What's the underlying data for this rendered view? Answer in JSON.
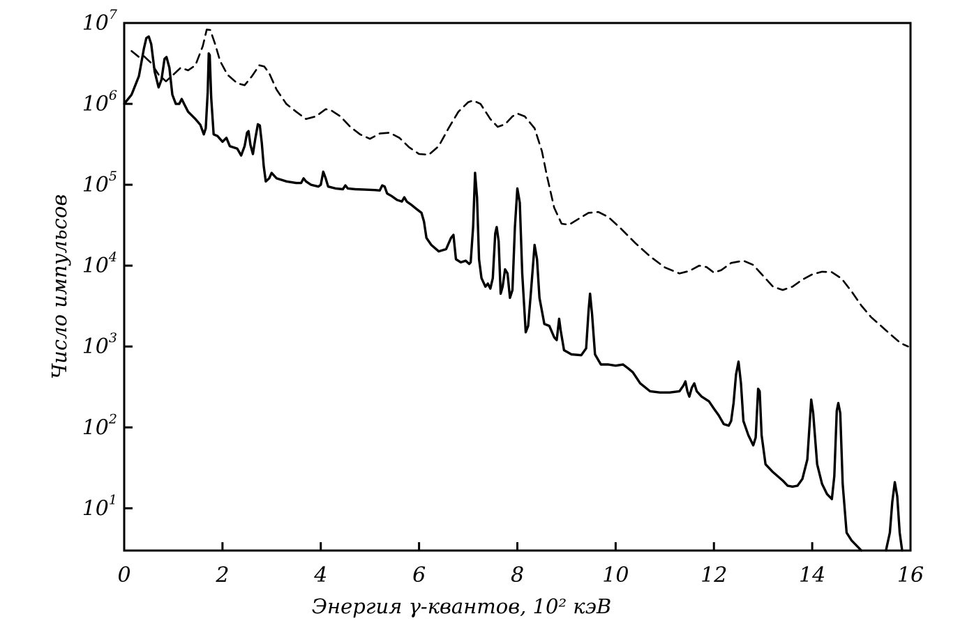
{
  "chart_data": {
    "type": "line",
    "xlabel": "Энергия γ-квантов, 10² кэВ",
    "ylabel": "Число импульсов",
    "xlim": [
      0,
      16
    ],
    "ylim": [
      3,
      10000000
    ],
    "yscale": "log",
    "grid": false,
    "x_ticks": [
      {
        "value": 0,
        "label": "0"
      },
      {
        "value": 2,
        "label": "2"
      },
      {
        "value": 4,
        "label": "4"
      },
      {
        "value": 6,
        "label": "6"
      },
      {
        "value": 8,
        "label": "8"
      },
      {
        "value": 10,
        "label": "10"
      },
      {
        "value": 12,
        "label": "12"
      },
      {
        "value": 14,
        "label": "14"
      },
      {
        "value": 16,
        "label": "16"
      }
    ],
    "y_ticks": [
      {
        "value": 10,
        "base": "10",
        "exp": "1"
      },
      {
        "value": 100,
        "base": "10",
        "exp": "2"
      },
      {
        "value": 1000,
        "base": "10",
        "exp": "3"
      },
      {
        "value": 10000,
        "base": "10",
        "exp": "4"
      },
      {
        "value": 100000,
        "base": "10",
        "exp": "5"
      },
      {
        "value": 1000000,
        "base": "10",
        "exp": "6"
      },
      {
        "value": 10000000,
        "base": "10",
        "exp": "7"
      }
    ],
    "series": [
      {
        "style": "dashed",
        "color": "#000000",
        "points": [
          [
            0.15,
            4500000
          ],
          [
            0.3,
            3800000
          ],
          [
            0.4,
            3900000
          ],
          [
            0.55,
            3200000
          ],
          [
            0.7,
            2300000
          ],
          [
            0.85,
            1900000
          ],
          [
            1.0,
            2300000
          ],
          [
            1.15,
            2800000
          ],
          [
            1.3,
            2600000
          ],
          [
            1.45,
            3000000
          ],
          [
            1.6,
            5200000
          ],
          [
            1.68,
            8300000
          ],
          [
            1.75,
            8200000
          ],
          [
            1.85,
            5500000
          ],
          [
            1.95,
            3400000
          ],
          [
            2.1,
            2300000
          ],
          [
            2.3,
            1800000
          ],
          [
            2.45,
            1700000
          ],
          [
            2.6,
            2200000
          ],
          [
            2.75,
            3000000
          ],
          [
            2.85,
            2900000
          ],
          [
            2.95,
            2400000
          ],
          [
            3.1,
            1500000
          ],
          [
            3.3,
            1000000
          ],
          [
            3.5,
            800000
          ],
          [
            3.7,
            650000
          ],
          [
            3.9,
            700000
          ],
          [
            4.1,
            860000
          ],
          [
            4.2,
            840000
          ],
          [
            4.4,
            700000
          ],
          [
            4.6,
            520000
          ],
          [
            4.8,
            420000
          ],
          [
            5.0,
            370000
          ],
          [
            5.2,
            430000
          ],
          [
            5.4,
            440000
          ],
          [
            5.6,
            380000
          ],
          [
            5.8,
            290000
          ],
          [
            6.0,
            240000
          ],
          [
            6.2,
            235000
          ],
          [
            6.4,
            300000
          ],
          [
            6.6,
            500000
          ],
          [
            6.8,
            800000
          ],
          [
            7.0,
            1050000
          ],
          [
            7.1,
            1100000
          ],
          [
            7.25,
            1000000
          ],
          [
            7.45,
            650000
          ],
          [
            7.6,
            520000
          ],
          [
            7.75,
            560000
          ],
          [
            7.9,
            700000
          ],
          [
            8.0,
            760000
          ],
          [
            8.15,
            700000
          ],
          [
            8.35,
            500000
          ],
          [
            8.5,
            260000
          ],
          [
            8.6,
            130000
          ],
          [
            8.75,
            52000
          ],
          [
            8.9,
            33000
          ],
          [
            9.05,
            32000
          ],
          [
            9.25,
            38000
          ],
          [
            9.45,
            45000
          ],
          [
            9.65,
            46000
          ],
          [
            9.85,
            40000
          ],
          [
            10.1,
            29000
          ],
          [
            10.4,
            19000
          ],
          [
            10.7,
            13000
          ],
          [
            11.0,
            9500
          ],
          [
            11.3,
            8000
          ],
          [
            11.5,
            8600
          ],
          [
            11.7,
            10000
          ],
          [
            11.85,
            9600
          ],
          [
            12.0,
            8200
          ],
          [
            12.15,
            8800
          ],
          [
            12.35,
            10800
          ],
          [
            12.6,
            11500
          ],
          [
            12.8,
            10200
          ],
          [
            13.0,
            7500
          ],
          [
            13.2,
            5500
          ],
          [
            13.4,
            5000
          ],
          [
            13.6,
            5500
          ],
          [
            13.8,
            6700
          ],
          [
            14.0,
            7800
          ],
          [
            14.2,
            8400
          ],
          [
            14.4,
            8300
          ],
          [
            14.6,
            6900
          ],
          [
            14.8,
            4800
          ],
          [
            15.0,
            3200
          ],
          [
            15.2,
            2300
          ],
          [
            15.4,
            1800
          ],
          [
            15.6,
            1400
          ],
          [
            15.8,
            1100
          ],
          [
            15.95,
            1000
          ]
        ]
      },
      {
        "style": "solid",
        "color": "#000000",
        "points": [
          [
            0.0,
            1000000
          ],
          [
            0.15,
            1300000
          ],
          [
            0.3,
            2200000
          ],
          [
            0.4,
            4800000
          ],
          [
            0.45,
            6500000
          ],
          [
            0.5,
            6800000
          ],
          [
            0.55,
            5500000
          ],
          [
            0.62,
            2500000
          ],
          [
            0.7,
            1600000
          ],
          [
            0.76,
            2000000
          ],
          [
            0.82,
            3600000
          ],
          [
            0.86,
            3800000
          ],
          [
            0.92,
            2800000
          ],
          [
            0.98,
            1300000
          ],
          [
            1.05,
            1000000
          ],
          [
            1.12,
            1000000
          ],
          [
            1.17,
            1150000
          ],
          [
            1.22,
            1000000
          ],
          [
            1.3,
            800000
          ],
          [
            1.45,
            650000
          ],
          [
            1.55,
            550000
          ],
          [
            1.62,
            420000
          ],
          [
            1.66,
            500000
          ],
          [
            1.7,
            1400000
          ],
          [
            1.72,
            4200000
          ],
          [
            1.74,
            4000000
          ],
          [
            1.77,
            1200000
          ],
          [
            1.82,
            420000
          ],
          [
            1.9,
            400000
          ],
          [
            2.0,
            340000
          ],
          [
            2.08,
            380000
          ],
          [
            2.15,
            300000
          ],
          [
            2.3,
            280000
          ],
          [
            2.38,
            230000
          ],
          [
            2.45,
            300000
          ],
          [
            2.5,
            440000
          ],
          [
            2.53,
            460000
          ],
          [
            2.57,
            310000
          ],
          [
            2.62,
            240000
          ],
          [
            2.67,
            380000
          ],
          [
            2.72,
            560000
          ],
          [
            2.76,
            540000
          ],
          [
            2.8,
            330000
          ],
          [
            2.84,
            170000
          ],
          [
            2.88,
            110000
          ],
          [
            2.95,
            120000
          ],
          [
            3.0,
            140000
          ],
          [
            3.1,
            120000
          ],
          [
            3.3,
            110000
          ],
          [
            3.5,
            105000
          ],
          [
            3.6,
            105000
          ],
          [
            3.65,
            120000
          ],
          [
            3.7,
            110000
          ],
          [
            3.8,
            100000
          ],
          [
            3.95,
            95000
          ],
          [
            4.0,
            100000
          ],
          [
            4.05,
            145000
          ],
          [
            4.1,
            120000
          ],
          [
            4.15,
            95000
          ],
          [
            4.3,
            90000
          ],
          [
            4.45,
            88000
          ],
          [
            4.5,
            98000
          ],
          [
            4.55,
            90000
          ],
          [
            4.7,
            88000
          ],
          [
            4.9,
            87000
          ],
          [
            5.1,
            86000
          ],
          [
            5.2,
            85000
          ],
          [
            5.25,
            98000
          ],
          [
            5.3,
            95000
          ],
          [
            5.35,
            78000
          ],
          [
            5.45,
            72000
          ],
          [
            5.55,
            65000
          ],
          [
            5.65,
            62000
          ],
          [
            5.7,
            70000
          ],
          [
            5.75,
            62000
          ],
          [
            5.85,
            56000
          ],
          [
            5.95,
            50000
          ],
          [
            6.05,
            45000
          ],
          [
            6.1,
            35000
          ],
          [
            6.15,
            22000
          ],
          [
            6.25,
            18000
          ],
          [
            6.4,
            15000
          ],
          [
            6.55,
            16000
          ],
          [
            6.65,
            22000
          ],
          [
            6.7,
            24000
          ],
          [
            6.75,
            12000
          ],
          [
            6.85,
            11000
          ],
          [
            6.95,
            11500
          ],
          [
            7.02,
            10500
          ],
          [
            7.05,
            11000
          ],
          [
            7.1,
            30000
          ],
          [
            7.14,
            140000
          ],
          [
            7.18,
            70000
          ],
          [
            7.22,
            12000
          ],
          [
            7.27,
            7000
          ],
          [
            7.35,
            5500
          ],
          [
            7.4,
            6000
          ],
          [
            7.45,
            5200
          ],
          [
            7.5,
            7000
          ],
          [
            7.55,
            25000
          ],
          [
            7.58,
            30000
          ],
          [
            7.62,
            20000
          ],
          [
            7.66,
            4500
          ],
          [
            7.7,
            5500
          ],
          [
            7.75,
            9000
          ],
          [
            7.8,
            8000
          ],
          [
            7.85,
            4000
          ],
          [
            7.9,
            5000
          ],
          [
            7.95,
            30000
          ],
          [
            8.0,
            90000
          ],
          [
            8.05,
            60000
          ],
          [
            8.1,
            8000
          ],
          [
            8.17,
            1500
          ],
          [
            8.22,
            1800
          ],
          [
            8.28,
            5000
          ],
          [
            8.35,
            18000
          ],
          [
            8.4,
            12000
          ],
          [
            8.45,
            4000
          ],
          [
            8.55,
            1900
          ],
          [
            8.65,
            1800
          ],
          [
            8.75,
            1300
          ],
          [
            8.8,
            1200
          ],
          [
            8.85,
            2200
          ],
          [
            8.88,
            1600
          ],
          [
            8.95,
            900
          ],
          [
            9.1,
            800
          ],
          [
            9.3,
            780
          ],
          [
            9.4,
            950
          ],
          [
            9.45,
            2800
          ],
          [
            9.48,
            4500
          ],
          [
            9.52,
            2500
          ],
          [
            9.58,
            800
          ],
          [
            9.7,
            600
          ],
          [
            9.85,
            600
          ],
          [
            10.0,
            580
          ],
          [
            10.15,
            600
          ],
          [
            10.25,
            540
          ],
          [
            10.35,
            480
          ],
          [
            10.5,
            350
          ],
          [
            10.7,
            280
          ],
          [
            10.9,
            270
          ],
          [
            11.1,
            270
          ],
          [
            11.3,
            280
          ],
          [
            11.38,
            330
          ],
          [
            11.42,
            370
          ],
          [
            11.46,
            280
          ],
          [
            11.5,
            240
          ],
          [
            11.55,
            310
          ],
          [
            11.6,
            350
          ],
          [
            11.65,
            280
          ],
          [
            11.75,
            240
          ],
          [
            11.9,
            210
          ],
          [
            12.0,
            170
          ],
          [
            12.1,
            140
          ],
          [
            12.2,
            110
          ],
          [
            12.3,
            105
          ],
          [
            12.35,
            120
          ],
          [
            12.4,
            200
          ],
          [
            12.45,
            450
          ],
          [
            12.5,
            650
          ],
          [
            12.55,
            350
          ],
          [
            12.6,
            120
          ],
          [
            12.7,
            80
          ],
          [
            12.8,
            60
          ],
          [
            12.85,
            75
          ],
          [
            12.9,
            300
          ],
          [
            12.93,
            280
          ],
          [
            12.97,
            80
          ],
          [
            13.05,
            35
          ],
          [
            13.2,
            28
          ],
          [
            13.4,
            22
          ],
          [
            13.5,
            19
          ],
          [
            13.6,
            18.5
          ],
          [
            13.7,
            19
          ],
          [
            13.8,
            23
          ],
          [
            13.9,
            40
          ],
          [
            13.98,
            220
          ],
          [
            14.02,
            150
          ],
          [
            14.1,
            35
          ],
          [
            14.2,
            20
          ],
          [
            14.3,
            15
          ],
          [
            14.4,
            13
          ],
          [
            14.45,
            25
          ],
          [
            14.5,
            160
          ],
          [
            14.53,
            200
          ],
          [
            14.57,
            150
          ],
          [
            14.62,
            20
          ],
          [
            14.7,
            5
          ],
          [
            14.8,
            4
          ],
          [
            15.0,
            3
          ]
        ]
      },
      {
        "style": "solid",
        "color": "#000000",
        "points": [
          [
            15.5,
            3
          ],
          [
            15.58,
            5
          ],
          [
            15.63,
            12
          ],
          [
            15.68,
            21
          ],
          [
            15.73,
            14
          ],
          [
            15.78,
            5
          ],
          [
            15.83,
            3
          ]
        ]
      }
    ]
  }
}
